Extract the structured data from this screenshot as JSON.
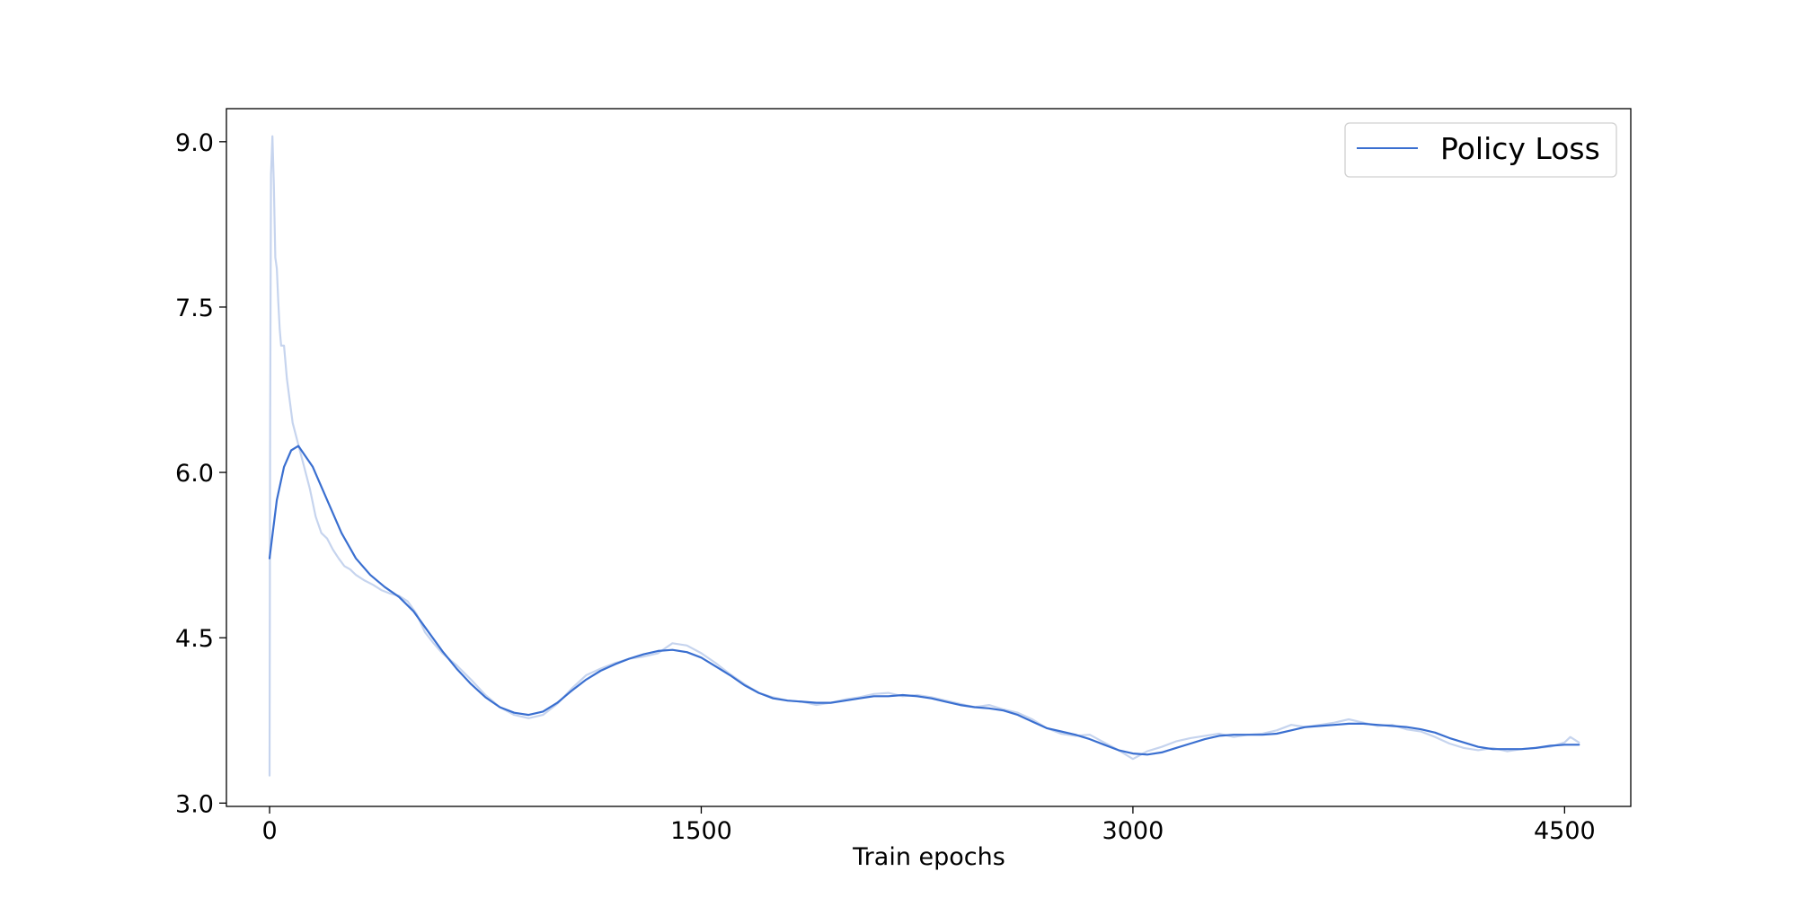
{
  "chart_data": {
    "type": "line",
    "title": "",
    "xlabel": "Train epochs",
    "ylabel": "",
    "xlim": [
      -150,
      4730
    ],
    "ylim": [
      2.97,
      9.3
    ],
    "xticks": [
      0,
      1500,
      3000,
      4500
    ],
    "xtick_labels": [
      "0",
      "1500",
      "3000",
      "4500"
    ],
    "yticks": [
      3.0,
      4.5,
      6.0,
      7.5,
      9.0
    ],
    "ytick_labels": [
      "3.0",
      "4.5",
      "6.0",
      "7.5",
      "9.0"
    ],
    "grid": false,
    "legend": {
      "position": "top-right",
      "entries": [
        "Policy Loss"
      ]
    },
    "colors": {
      "smoothed": "#3a6fd0",
      "raw": "#c6d4ee"
    },
    "series": [
      {
        "name": "Policy Loss",
        "role": "smoothed",
        "x": [
          0,
          25,
          50,
          75,
          100,
          150,
          200,
          250,
          300,
          350,
          400,
          450,
          500,
          550,
          600,
          650,
          700,
          750,
          800,
          850,
          900,
          950,
          1000,
          1050,
          1100,
          1150,
          1200,
          1250,
          1300,
          1350,
          1400,
          1450,
          1500,
          1550,
          1600,
          1650,
          1700,
          1750,
          1800,
          1850,
          1900,
          1950,
          2000,
          2050,
          2100,
          2150,
          2200,
          2250,
          2300,
          2350,
          2400,
          2450,
          2500,
          2550,
          2600,
          2650,
          2700,
          2750,
          2800,
          2850,
          2900,
          2950,
          3000,
          3050,
          3100,
          3150,
          3200,
          3250,
          3300,
          3350,
          3400,
          3450,
          3500,
          3550,
          3600,
          3650,
          3700,
          3750,
          3800,
          3850,
          3900,
          3950,
          4000,
          4050,
          4100,
          4150,
          4200,
          4250,
          4300,
          4350,
          4400,
          4450,
          4500,
          4550
        ],
        "y": [
          5.22,
          5.75,
          6.05,
          6.2,
          6.24,
          6.05,
          5.75,
          5.45,
          5.22,
          5.07,
          4.96,
          4.87,
          4.74,
          4.56,
          4.38,
          4.22,
          4.08,
          3.96,
          3.87,
          3.82,
          3.8,
          3.83,
          3.91,
          4.02,
          4.12,
          4.2,
          4.26,
          4.31,
          4.35,
          4.38,
          4.39,
          4.37,
          4.32,
          4.24,
          4.16,
          4.07,
          4.0,
          3.95,
          3.93,
          3.92,
          3.91,
          3.91,
          3.93,
          3.95,
          3.97,
          3.97,
          3.98,
          3.97,
          3.95,
          3.92,
          3.89,
          3.87,
          3.86,
          3.84,
          3.8,
          3.74,
          3.68,
          3.65,
          3.62,
          3.58,
          3.53,
          3.48,
          3.45,
          3.44,
          3.46,
          3.5,
          3.54,
          3.58,
          3.61,
          3.62,
          3.62,
          3.62,
          3.63,
          3.66,
          3.69,
          3.7,
          3.71,
          3.72,
          3.72,
          3.71,
          3.7,
          3.69,
          3.67,
          3.64,
          3.59,
          3.55,
          3.51,
          3.49,
          3.49,
          3.49,
          3.5,
          3.52,
          3.53,
          3.53
        ]
      },
      {
        "name": "",
        "role": "raw",
        "x": [
          0,
          2,
          5,
          10,
          15,
          20,
          25,
          30,
          35,
          40,
          50,
          60,
          70,
          80,
          90,
          100,
          110,
          120,
          140,
          160,
          180,
          200,
          220,
          240,
          260,
          280,
          300,
          330,
          360,
          390,
          420,
          450,
          480,
          510,
          540,
          570,
          600,
          650,
          700,
          750,
          800,
          850,
          900,
          950,
          1000,
          1050,
          1100,
          1150,
          1200,
          1250,
          1300,
          1350,
          1400,
          1450,
          1500,
          1550,
          1600,
          1650,
          1700,
          1750,
          1800,
          1850,
          1900,
          1950,
          2000,
          2050,
          2100,
          2150,
          2200,
          2250,
          2300,
          2350,
          2400,
          2450,
          2500,
          2550,
          2600,
          2650,
          2700,
          2750,
          2800,
          2850,
          2900,
          2950,
          3000,
          3050,
          3100,
          3150,
          3200,
          3250,
          3300,
          3350,
          3400,
          3450,
          3500,
          3550,
          3600,
          3650,
          3700,
          3750,
          3800,
          3850,
          3900,
          3950,
          4000,
          4050,
          4100,
          4150,
          4200,
          4250,
          4300,
          4350,
          4400,
          4450,
          4500,
          4520,
          4550
        ],
        "y": [
          3.25,
          6.5,
          8.7,
          9.05,
          8.6,
          7.95,
          7.85,
          7.55,
          7.3,
          7.15,
          7.15,
          6.85,
          6.65,
          6.45,
          6.35,
          6.25,
          6.15,
          6.05,
          5.85,
          5.6,
          5.45,
          5.4,
          5.3,
          5.22,
          5.15,
          5.12,
          5.07,
          5.02,
          4.98,
          4.93,
          4.9,
          4.88,
          4.83,
          4.72,
          4.55,
          4.45,
          4.36,
          4.25,
          4.12,
          3.98,
          3.87,
          3.8,
          3.77,
          3.8,
          3.9,
          4.04,
          4.16,
          4.22,
          4.27,
          4.31,
          4.33,
          4.36,
          4.45,
          4.43,
          4.36,
          4.27,
          4.17,
          4.08,
          4.0,
          3.96,
          3.93,
          3.92,
          3.89,
          3.91,
          3.94,
          3.96,
          3.99,
          4.0,
          3.97,
          3.98,
          3.96,
          3.93,
          3.9,
          3.87,
          3.89,
          3.85,
          3.82,
          3.76,
          3.68,
          3.63,
          3.61,
          3.62,
          3.55,
          3.48,
          3.4,
          3.47,
          3.51,
          3.56,
          3.59,
          3.61,
          3.63,
          3.6,
          3.62,
          3.63,
          3.66,
          3.71,
          3.69,
          3.71,
          3.73,
          3.76,
          3.73,
          3.7,
          3.71,
          3.67,
          3.65,
          3.6,
          3.54,
          3.5,
          3.48,
          3.5,
          3.47,
          3.49,
          3.5,
          3.51,
          3.55,
          3.6,
          3.55
        ]
      }
    ]
  }
}
